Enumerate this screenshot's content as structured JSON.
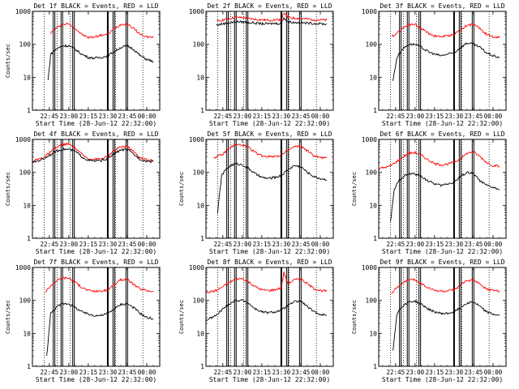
{
  "figure": {
    "colors": {
      "events": "#000000",
      "lld": "#ff0000",
      "background": "#ffffff"
    }
  },
  "chart_data": [
    {
      "type": "line",
      "title": "Det 1f BLACK = Events, RED = LLD",
      "xlabel": "Start Time (28-Jun-12 22:32:00)",
      "ylabel": "Counts/sec",
      "yscale": "log",
      "ylim": [
        1,
        1000
      ],
      "yticks": [
        "1",
        "10",
        "100",
        "1000"
      ],
      "xticks": [
        "22:45",
        "23:00",
        "23:15",
        "23:30",
        "23:45",
        "00:00"
      ],
      "series": [
        {
          "color": "#ff0000",
          "x": [
            "22:46",
            "22:50",
            "22:55",
            "23:00",
            "23:05",
            "23:10",
            "23:15",
            "23:20",
            "23:25",
            "23:30",
            "23:35",
            "23:40",
            "23:45",
            "23:50",
            "23:55",
            "00:00",
            "00:05"
          ],
          "values": [
            220,
            300,
            400,
            420,
            300,
            200,
            160,
            170,
            190,
            200,
            300,
            400,
            420,
            300,
            200,
            170,
            160
          ]
        },
        {
          "color": "#000000",
          "x": [
            "22:44",
            "22:46",
            "22:50",
            "22:55",
            "23:00",
            "23:05",
            "23:10",
            "23:15",
            "23:20",
            "23:25",
            "23:30",
            "23:35",
            "23:40",
            "23:45",
            "23:50",
            "23:55",
            "00:00",
            "00:05"
          ],
          "values": [
            8,
            50,
            70,
            90,
            90,
            70,
            50,
            40,
            38,
            40,
            45,
            60,
            80,
            90,
            70,
            45,
            35,
            30
          ]
        }
      ]
    },
    {
      "type": "line",
      "title": "Det 2f BLACK = Events, RED = LLD",
      "xlabel": "Start Time (28-Jun-12 22:32:00)",
      "ylabel": "",
      "yscale": "log",
      "ylim": [
        1,
        1000
      ],
      "yticks": [
        "1",
        "10",
        "100",
        "1000"
      ],
      "xticks": [
        "22:45",
        "23:00",
        "23:15",
        "23:30",
        "23:45",
        "00:00"
      ],
      "series": [
        {
          "color": "#ff0000",
          "x": [
            "22:40",
            "22:45",
            "22:50",
            "22:55",
            "23:00",
            "23:05",
            "23:10",
            "23:15",
            "23:20",
            "23:25",
            "23:30",
            "23:32",
            "23:35",
            "23:40",
            "23:45",
            "23:50",
            "23:55",
            "00:00",
            "00:05"
          ],
          "values": [
            500,
            550,
            600,
            650,
            650,
            600,
            570,
            550,
            540,
            550,
            560,
            900,
            650,
            620,
            600,
            580,
            560,
            550,
            540
          ]
        },
        {
          "color": "#000000",
          "x": [
            "22:40",
            "22:45",
            "22:50",
            "22:55",
            "23:00",
            "23:05",
            "23:10",
            "23:15",
            "23:20",
            "23:25",
            "23:30",
            "23:32",
            "23:35",
            "23:40",
            "23:45",
            "23:50",
            "23:55",
            "00:00",
            "00:05"
          ],
          "values": [
            380,
            420,
            450,
            480,
            480,
            460,
            440,
            420,
            420,
            430,
            430,
            650,
            480,
            460,
            450,
            440,
            430,
            420,
            410
          ]
        }
      ]
    },
    {
      "type": "line",
      "title": "Det 3f BLACK = Events, RED = LLD",
      "xlabel": "Start Time (28-Jun-12 22:32:00)",
      "ylabel": "",
      "yscale": "log",
      "ylim": [
        1,
        1000
      ],
      "yticks": [
        "1",
        "10",
        "100",
        "1000"
      ],
      "xticks": [
        "22:45",
        "23:00",
        "23:15",
        "23:30",
        "23:45",
        "00:00"
      ],
      "series": [
        {
          "color": "#ff0000",
          "x": [
            "22:42",
            "22:46",
            "22:50",
            "22:55",
            "23:00",
            "23:05",
            "23:10",
            "23:15",
            "23:20",
            "23:25",
            "23:30",
            "23:35",
            "23:40",
            "23:45",
            "23:50",
            "23:55",
            "00:00",
            "00:05"
          ],
          "values": [
            170,
            220,
            300,
            400,
            400,
            300,
            220,
            180,
            170,
            180,
            200,
            280,
            380,
            400,
            300,
            200,
            170,
            160
          ]
        },
        {
          "color": "#000000",
          "x": [
            "22:43",
            "22:46",
            "22:50",
            "22:55",
            "23:00",
            "23:05",
            "23:10",
            "23:15",
            "23:20",
            "23:25",
            "23:30",
            "23:35",
            "23:40",
            "23:45",
            "23:50",
            "23:55",
            "00:00",
            "00:05"
          ],
          "values": [
            8,
            40,
            70,
            100,
            100,
            80,
            60,
            50,
            45,
            50,
            55,
            80,
            110,
            100,
            80,
            55,
            45,
            40
          ]
        }
      ]
    },
    {
      "type": "line",
      "title": "Det 4f BLACK = Events, RED = LLD",
      "xlabel": "Start Time (28-Jun-12 22:32:00)",
      "ylabel": "Counts/sec",
      "yscale": "log",
      "ylim": [
        1,
        1000
      ],
      "yticks": [
        "1",
        "10",
        "100",
        "1000"
      ],
      "xticks": [
        "22:45",
        "23:00",
        "23:15",
        "23:30",
        "23:45",
        "00:00"
      ],
      "series": [
        {
          "color": "#ff0000",
          "x": [
            "22:32",
            "22:40",
            "22:45",
            "22:50",
            "22:55",
            "23:00",
            "23:05",
            "23:10",
            "23:15",
            "23:20",
            "23:25",
            "23:30",
            "23:35",
            "23:40",
            "23:45",
            "23:50",
            "23:55",
            "00:00",
            "00:05"
          ],
          "values": [
            220,
            280,
            380,
            550,
            700,
            720,
            550,
            350,
            260,
            250,
            260,
            300,
            450,
            600,
            620,
            420,
            280,
            240,
            230
          ]
        },
        {
          "color": "#000000",
          "x": [
            "22:32",
            "22:40",
            "22:45",
            "22:50",
            "22:55",
            "23:00",
            "23:05",
            "23:10",
            "23:15",
            "23:20",
            "23:25",
            "23:30",
            "23:35",
            "23:40",
            "23:45",
            "23:50",
            "23:55",
            "00:00",
            "00:05"
          ],
          "values": [
            200,
            250,
            330,
            430,
            500,
            500,
            430,
            300,
            230,
            220,
            230,
            260,
            370,
            480,
            490,
            350,
            250,
            220,
            210
          ]
        }
      ]
    },
    {
      "type": "line",
      "title": "Det 5f BLACK = Events, RED = LLD",
      "xlabel": "Start Time (28-Jun-12 22:32:00)",
      "ylabel": "Counts/sec",
      "yscale": "log",
      "ylim": [
        1,
        1000
      ],
      "yticks": [
        "1",
        "10",
        "100",
        "1000"
      ],
      "xticks": [
        "22:45",
        "23:00",
        "23:15",
        "23:30",
        "23:45",
        "00:00"
      ],
      "series": [
        {
          "color": "#ff0000",
          "x": [
            "22:38",
            "22:45",
            "22:50",
            "22:55",
            "23:00",
            "23:05",
            "23:10",
            "23:15",
            "23:20",
            "23:25",
            "23:30",
            "23:35",
            "23:40",
            "23:45",
            "23:50",
            "23:55",
            "00:00",
            "00:05"
          ],
          "values": [
            280,
            350,
            550,
            680,
            680,
            550,
            400,
            320,
            300,
            310,
            330,
            450,
            600,
            620,
            450,
            320,
            280,
            270
          ]
        },
        {
          "color": "#000000",
          "x": [
            "22:41",
            "22:44",
            "22:48",
            "22:52",
            "22:56",
            "23:00",
            "23:05",
            "23:10",
            "23:15",
            "23:20",
            "23:25",
            "23:30",
            "23:35",
            "23:40",
            "23:45",
            "23:50",
            "23:55",
            "00:00",
            "00:05"
          ],
          "values": [
            6,
            80,
            130,
            170,
            180,
            170,
            130,
            90,
            70,
            65,
            70,
            80,
            120,
            160,
            150,
            100,
            75,
            65,
            60
          ]
        }
      ]
    },
    {
      "type": "line",
      "title": "Det 6f BLACK = Events, RED = LLD",
      "xlabel": "Start Time (28-Jun-12 22:32:00)",
      "ylabel": "Counts/sec",
      "yscale": "log",
      "ylim": [
        1,
        1000
      ],
      "yticks": [
        "1",
        "10",
        "100",
        "1000"
      ],
      "xticks": [
        "22:45",
        "23:00",
        "23:15",
        "23:30",
        "23:45",
        "00:00"
      ],
      "series": [
        {
          "color": "#ff0000",
          "x": [
            "22:32",
            "22:40",
            "22:45",
            "22:50",
            "22:55",
            "23:00",
            "23:05",
            "23:10",
            "23:15",
            "23:20",
            "23:25",
            "23:30",
            "23:35",
            "23:40",
            "23:45",
            "23:50",
            "23:55",
            "00:00",
            "00:05"
          ],
          "values": [
            130,
            150,
            200,
            280,
            380,
            400,
            330,
            240,
            180,
            170,
            180,
            200,
            260,
            380,
            420,
            300,
            200,
            160,
            150
          ]
        },
        {
          "color": "#000000",
          "x": [
            "22:41",
            "22:44",
            "22:48",
            "22:52",
            "22:56",
            "23:00",
            "23:05",
            "23:10",
            "23:15",
            "23:20",
            "23:25",
            "23:30",
            "23:35",
            "23:40",
            "23:45",
            "23:50",
            "23:55",
            "00:00",
            "00:05"
          ],
          "values": [
            3,
            30,
            60,
            80,
            90,
            90,
            75,
            55,
            45,
            40,
            45,
            50,
            75,
            100,
            90,
            55,
            40,
            35,
            30
          ]
        }
      ]
    },
    {
      "type": "line",
      "title": "Det 7f BLACK = Events, RED = LLD",
      "xlabel": "Start Time (28-Jun-12 22:32:00)",
      "ylabel": "Counts/sec",
      "yscale": "log",
      "ylim": [
        1,
        1000
      ],
      "yticks": [
        "1",
        "10",
        "100",
        "1000"
      ],
      "xticks": [
        "22:45",
        "23:00",
        "23:15",
        "23:30",
        "23:45",
        "00:00"
      ],
      "series": [
        {
          "color": "#ff0000",
          "x": [
            "22:42",
            "22:46",
            "22:50",
            "22:55",
            "23:00",
            "23:05",
            "23:10",
            "23:15",
            "23:20",
            "23:25",
            "23:30",
            "23:35",
            "23:40",
            "23:45",
            "23:50",
            "23:55",
            "00:00",
            "00:05"
          ],
          "values": [
            180,
            280,
            380,
            480,
            480,
            350,
            250,
            200,
            190,
            190,
            210,
            300,
            420,
            440,
            300,
            220,
            200,
            190
          ]
        },
        {
          "color": "#000000",
          "x": [
            "22:43",
            "22:46",
            "22:50",
            "22:55",
            "23:00",
            "23:05",
            "23:10",
            "23:15",
            "23:20",
            "23:25",
            "23:30",
            "23:35",
            "23:40",
            "23:45",
            "23:50",
            "23:55",
            "00:00",
            "00:05"
          ],
          "values": [
            2,
            40,
            60,
            80,
            80,
            60,
            45,
            38,
            35,
            35,
            40,
            55,
            75,
            80,
            60,
            40,
            30,
            28
          ]
        }
      ]
    },
    {
      "type": "line",
      "title": "Det 8f BLACK = Events, RED = LLD",
      "xlabel": "Start Time (28-Jun-12 22:32:00)",
      "ylabel": "Counts/sec",
      "yscale": "log",
      "ylim": [
        1,
        1000
      ],
      "yticks": [
        "1",
        "10",
        "100",
        "1000"
      ],
      "xticks": [
        "22:45",
        "23:00",
        "23:15",
        "23:30",
        "23:45",
        "00:00"
      ],
      "series": [
        {
          "color": "#ff0000",
          "x": [
            "22:32",
            "22:40",
            "22:45",
            "22:50",
            "22:55",
            "23:00",
            "23:05",
            "23:10",
            "23:15",
            "23:20",
            "23:25",
            "23:30",
            "23:32",
            "23:35",
            "23:40",
            "23:45",
            "23:50",
            "23:55",
            "00:00",
            "00:05"
          ],
          "values": [
            170,
            200,
            260,
            350,
            450,
            460,
            360,
            260,
            210,
            200,
            210,
            240,
            700,
            320,
            420,
            450,
            320,
            230,
            200,
            190
          ]
        },
        {
          "color": "#000000",
          "x": [
            "22:32",
            "22:40",
            "22:45",
            "22:50",
            "22:55",
            "23:00",
            "23:05",
            "23:10",
            "23:15",
            "23:20",
            "23:25",
            "23:30",
            "23:35",
            "23:40",
            "23:45",
            "23:50",
            "23:55",
            "00:00",
            "00:05"
          ],
          "values": [
            25,
            35,
            55,
            80,
            100,
            100,
            80,
            55,
            45,
            42,
            45,
            50,
            70,
            90,
            95,
            65,
            45,
            38,
            35
          ]
        }
      ]
    },
    {
      "type": "line",
      "title": "Det 9f BLACK = Events, RED = LLD",
      "xlabel": "Start Time (28-Jun-12 22:32:00)",
      "ylabel": "Counts/sec",
      "yscale": "log",
      "ylim": [
        1,
        1000
      ],
      "yticks": [
        "1",
        "10",
        "100",
        "1000"
      ],
      "xticks": [
        "22:45",
        "23:00",
        "23:15",
        "23:30",
        "23:45",
        "00:00"
      ],
      "series": [
        {
          "color": "#ff0000",
          "x": [
            "22:42",
            "22:46",
            "22:50",
            "22:55",
            "23:00",
            "23:05",
            "23:10",
            "23:15",
            "23:20",
            "23:25",
            "23:30",
            "23:35",
            "23:40",
            "23:45",
            "23:50",
            "23:55",
            "00:00",
            "00:05"
          ],
          "values": [
            170,
            250,
            320,
            420,
            420,
            320,
            240,
            200,
            190,
            190,
            210,
            290,
            400,
            420,
            300,
            220,
            200,
            190
          ]
        },
        {
          "color": "#000000",
          "x": [
            "22:43",
            "22:46",
            "22:50",
            "22:55",
            "23:00",
            "23:05",
            "23:10",
            "23:15",
            "23:20",
            "23:25",
            "23:30",
            "23:35",
            "23:40",
            "23:45",
            "23:50",
            "23:55",
            "00:00",
            "00:05"
          ],
          "values": [
            3,
            40,
            65,
            90,
            95,
            75,
            55,
            45,
            40,
            40,
            45,
            60,
            85,
            90,
            65,
            45,
            38,
            35
          ]
        }
      ]
    }
  ]
}
